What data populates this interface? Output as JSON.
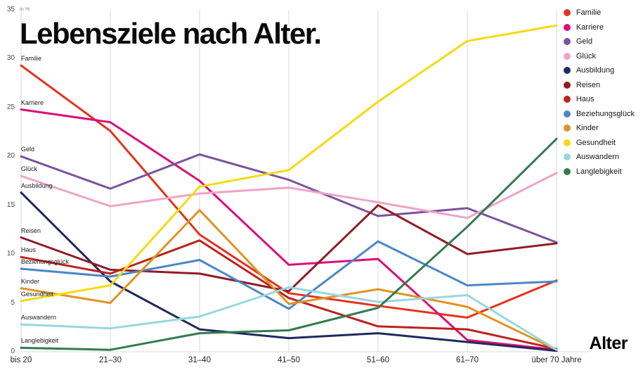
{
  "title": "Lebensziele nach Alter.",
  "unit_label": "in %",
  "x_axis_title": "Alter",
  "colors": {
    "background": "#ffffff",
    "gridline": "#d9d9d9"
  },
  "chart_data": {
    "type": "line",
    "title": "Lebensziele nach Alter.",
    "xlabel": "Alter",
    "ylabel": "in %",
    "ylim": [
      0,
      35
    ],
    "yticks": [
      0,
      5,
      10,
      15,
      20,
      25,
      30,
      35
    ],
    "grid": "vertical",
    "legend_position": "top-right",
    "categories": [
      "bis 20",
      "21–30",
      "31–40",
      "41–50",
      "51–60",
      "61–70",
      "über 70 Jahre"
    ],
    "series": [
      {
        "name": "Familie",
        "color": "#e5321d",
        "values": [
          29.3,
          22.6,
          12.0,
          6.0,
          4.7,
          3.5,
          7.3
        ]
      },
      {
        "name": "Karriere",
        "color": "#dd1075",
        "values": [
          24.8,
          23.5,
          17.5,
          8.9,
          9.5,
          1.2,
          0.2
        ]
      },
      {
        "name": "Geld",
        "color": "#7a549d",
        "values": [
          20.0,
          16.7,
          20.2,
          17.6,
          13.9,
          14.7,
          11.2
        ]
      },
      {
        "name": "Glück",
        "color": "#eea4c7",
        "values": [
          18.0,
          14.9,
          16.2,
          16.8,
          15.3,
          13.7,
          18.3
        ]
      },
      {
        "name": "Ausbildung",
        "color": "#1f2a5e",
        "values": [
          16.3,
          7.2,
          2.3,
          1.4,
          1.9,
          1.0,
          0.1
        ]
      },
      {
        "name": "Reisen",
        "color": "#8f1d26",
        "values": [
          11.7,
          8.4,
          8.0,
          6.2,
          15.0,
          10.0,
          11.1
        ]
      },
      {
        "name": "Haus",
        "color": "#bc231e",
        "values": [
          9.7,
          8.0,
          11.4,
          5.5,
          2.6,
          2.3,
          0.3
        ]
      },
      {
        "name": "Beziehungsglück",
        "color": "#4c86c8",
        "values": [
          8.5,
          7.7,
          9.4,
          4.4,
          11.3,
          6.8,
          7.2
        ]
      },
      {
        "name": "Kinder",
        "color": "#df9422",
        "values": [
          6.5,
          5.0,
          14.5,
          4.9,
          6.4,
          4.6,
          0.2
        ]
      },
      {
        "name": "Gesundheit",
        "color": "#f6da12",
        "values": [
          5.2,
          6.8,
          16.9,
          18.6,
          25.6,
          31.8,
          33.4
        ]
      },
      {
        "name": "Auswandern",
        "color": "#98d7de",
        "values": [
          2.8,
          2.4,
          3.6,
          6.6,
          5.1,
          5.8,
          0.2
        ]
      },
      {
        "name": "Langlebigkeit",
        "color": "#337a51",
        "values": [
          0.4,
          0.2,
          1.9,
          2.2,
          4.5,
          12.8,
          21.8
        ]
      }
    ]
  }
}
